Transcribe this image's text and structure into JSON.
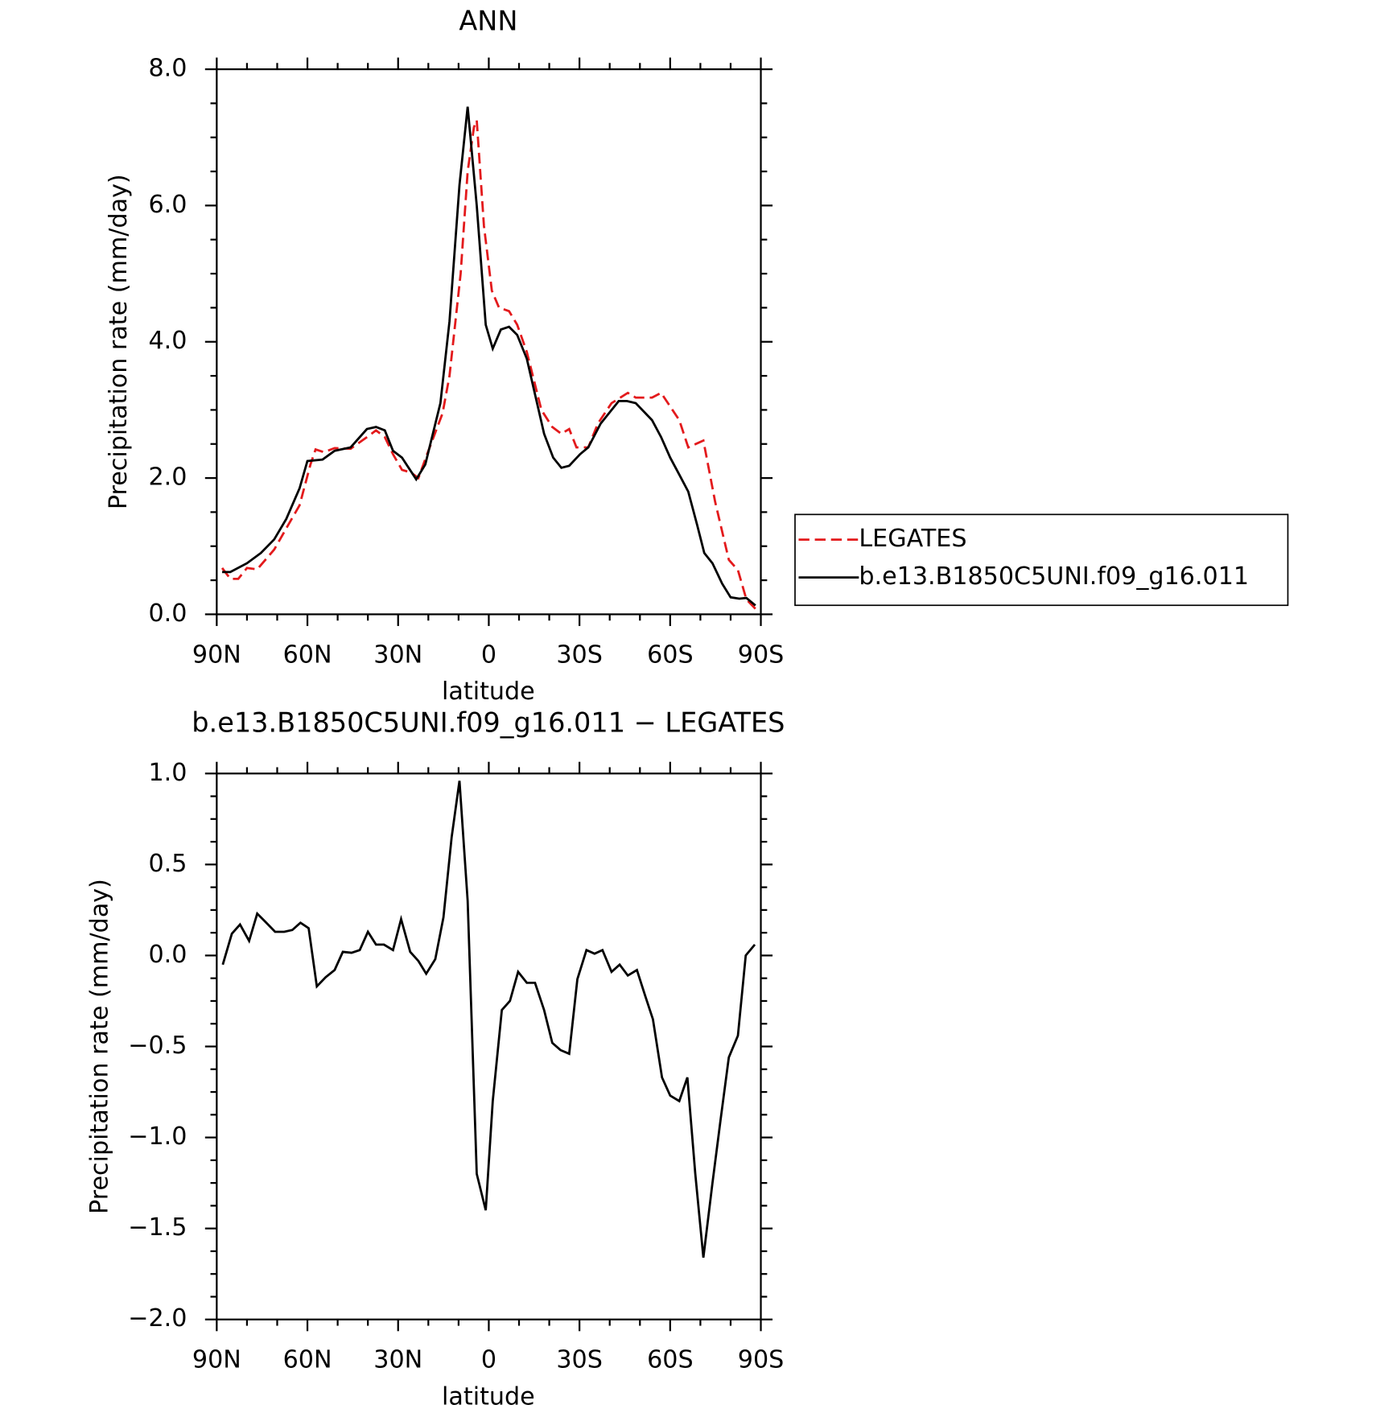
{
  "chart_data": [
    {
      "type": "line",
      "title": "ANN",
      "xlabel": "latitude",
      "ylabel": "Precipitation rate (mm/day)",
      "xlim": [
        90,
        -90
      ],
      "xticks": [
        {
          "value": 90,
          "label": "90N"
        },
        {
          "value": 60,
          "label": "60N"
        },
        {
          "value": 30,
          "label": "30N"
        },
        0,
        {
          "value": -30,
          "label": "30S"
        },
        {
          "value": -60,
          "label": "60S"
        },
        {
          "value": -90,
          "label": "90S"
        }
      ],
      "ylim": [
        0,
        8
      ],
      "yticks": [
        {
          "value": 0,
          "label": "0.0"
        },
        {
          "value": 2,
          "label": "2.0"
        },
        {
          "value": 4,
          "label": "4.0"
        },
        {
          "value": 6,
          "label": "6.0"
        },
        {
          "value": 8,
          "label": "8.0"
        }
      ],
      "series": [
        {
          "name": "LEGATES",
          "color": "#e31a1c",
          "dash": true,
          "x": [
            88.2,
            85.5,
            82.9,
            80,
            76.6,
            71,
            66.5,
            62.6,
            59,
            57.3,
            54.6,
            51,
            45.7,
            40.3,
            37.3,
            34.4,
            31.7,
            28.7,
            25.7,
            23.3,
            20.4,
            15.3,
            13,
            9.3,
            7,
            4.9,
            4,
            1.6,
            -1,
            -3.4,
            -6.7,
            -9.4,
            -12.6,
            -17.4,
            -21,
            -24,
            -26.6,
            -29,
            -32.9,
            -36.1,
            -40.6,
            -46,
            -48.6,
            -54,
            -57,
            -63,
            -66,
            -71,
            -74.9,
            -79.4,
            -82.4,
            -85.2,
            -88.2
          ],
          "values": [
            0.68,
            0.52,
            0.52,
            0.68,
            0.66,
            0.95,
            1.3,
            1.6,
            2.2,
            2.42,
            2.38,
            2.44,
            2.43,
            2.6,
            2.7,
            2.6,
            2.35,
            2.12,
            2.08,
            2.0,
            2.35,
            2.95,
            3.5,
            5.0,
            6.5,
            7.15,
            7.25,
            5.7,
            4.75,
            4.5,
            4.45,
            4.25,
            3.85,
            3.0,
            2.75,
            2.65,
            2.72,
            2.45,
            2.45,
            2.8,
            3.1,
            3.25,
            3.18,
            3.18,
            3.25,
            2.85,
            2.45,
            2.55,
            1.65,
            0.8,
            0.65,
            0.22,
            0.08
          ]
        },
        {
          "name": "b.e13.B1850C5UNI.f09_g16.011",
          "color": "#000000",
          "dash": false,
          "x": [
            88.2,
            85.5,
            80,
            75.4,
            71,
            67,
            62.6,
            60,
            55,
            51,
            45.7,
            40.3,
            37.3,
            34.4,
            31.7,
            28.7,
            24,
            21,
            16,
            13,
            9.7,
            7,
            4,
            1,
            -1.3,
            -4,
            -6.7,
            -9.4,
            -12.6,
            -18.3,
            -21.3,
            -24,
            -26.6,
            -30.2,
            -32.9,
            -37,
            -43,
            -45.7,
            -48.6,
            -54,
            -57,
            -60,
            -63,
            -66,
            -69,
            -71.3,
            -74,
            -77.2,
            -80,
            -82.9,
            -85.2,
            -88.2
          ],
          "values": [
            0.62,
            0.62,
            0.75,
            0.9,
            1.1,
            1.4,
            1.85,
            2.25,
            2.27,
            2.4,
            2.45,
            2.72,
            2.75,
            2.7,
            2.4,
            2.3,
            1.98,
            2.2,
            3.1,
            4.3,
            6.3,
            7.45,
            6.0,
            4.25,
            3.9,
            4.18,
            4.22,
            4.1,
            3.75,
            2.65,
            2.3,
            2.15,
            2.18,
            2.35,
            2.45,
            2.8,
            3.13,
            3.13,
            3.1,
            2.85,
            2.6,
            2.3,
            2.05,
            1.8,
            1.3,
            0.9,
            0.75,
            0.45,
            0.25,
            0.23,
            0.24,
            0.13
          ]
        }
      ]
    },
    {
      "type": "line",
      "title": "b.e13.B1850C5UNI.f09_g16.011 − LEGATES",
      "xlabel": "latitude",
      "ylabel": "Precipitation rate (mm/day)",
      "xlim": [
        90,
        -90
      ],
      "xticks": [
        {
          "value": 90,
          "label": "90N"
        },
        {
          "value": 60,
          "label": "60N"
        },
        {
          "value": 30,
          "label": "30N"
        },
        0,
        {
          "value": -30,
          "label": "30S"
        },
        {
          "value": -60,
          "label": "60S"
        },
        {
          "value": -90,
          "label": "90S"
        }
      ],
      "ylim": [
        -2,
        1
      ],
      "yticks": [
        {
          "value": -2,
          "label": "−2.0"
        },
        {
          "value": -1.5,
          "label": "−1.5"
        },
        {
          "value": -1,
          "label": "−1.0"
        },
        {
          "value": -0.5,
          "label": "−0.5"
        },
        {
          "value": 0,
          "label": "0.0"
        },
        0.5,
        {
          "value": 1,
          "label": "1.0"
        }
      ],
      "series": [
        {
          "color": "#000000",
          "dash": false,
          "x": [
            88,
            85,
            82.3,
            79.3,
            76.6,
            73.6,
            70.7,
            67.7,
            65,
            62.3,
            59.6,
            56.9,
            54,
            51,
            48.3,
            45.4,
            42.7,
            40,
            37.3,
            34.7,
            31.7,
            29,
            26,
            23.3,
            20.7,
            17.7,
            15,
            12.3,
            9.7,
            7,
            4,
            1,
            -1.3,
            -4.3,
            -7,
            -9.7,
            -12.6,
            -15.3,
            -18.3,
            -21,
            -23.7,
            -26.6,
            -29.3,
            -32.3,
            -35,
            -37.6,
            -40.6,
            -43.3,
            -46,
            -49,
            -51.7,
            -54.3,
            -57.3,
            -60,
            -63,
            -65.7,
            -68.3,
            -71,
            -74,
            -76.7,
            -79.4,
            -82.4,
            -85,
            -88
          ],
          "values": [
            -0.05,
            0.12,
            0.17,
            0.08,
            0.23,
            0.18,
            0.13,
            0.13,
            0.14,
            0.18,
            0.15,
            -0.17,
            -0.12,
            -0.08,
            0.02,
            0.015,
            0.03,
            0.13,
            0.06,
            0.06,
            0.03,
            0.2,
            0.02,
            -0.03,
            -0.1,
            -0.02,
            0.21,
            0.65,
            0.96,
            0.3,
            -1.2,
            -1.4,
            -0.8,
            -0.3,
            -0.25,
            -0.09,
            -0.15,
            -0.15,
            -0.3,
            -0.48,
            -0.52,
            -0.54,
            -0.13,
            0.03,
            0.01,
            0.03,
            -0.09,
            -0.05,
            -0.11,
            -0.08,
            -0.22,
            -0.35,
            -0.67,
            -0.77,
            -0.8,
            -0.67,
            -1.2,
            -1.66,
            -1.25,
            -0.9,
            -0.56,
            -0.44,
            0,
            0.06
          ]
        }
      ]
    }
  ]
}
